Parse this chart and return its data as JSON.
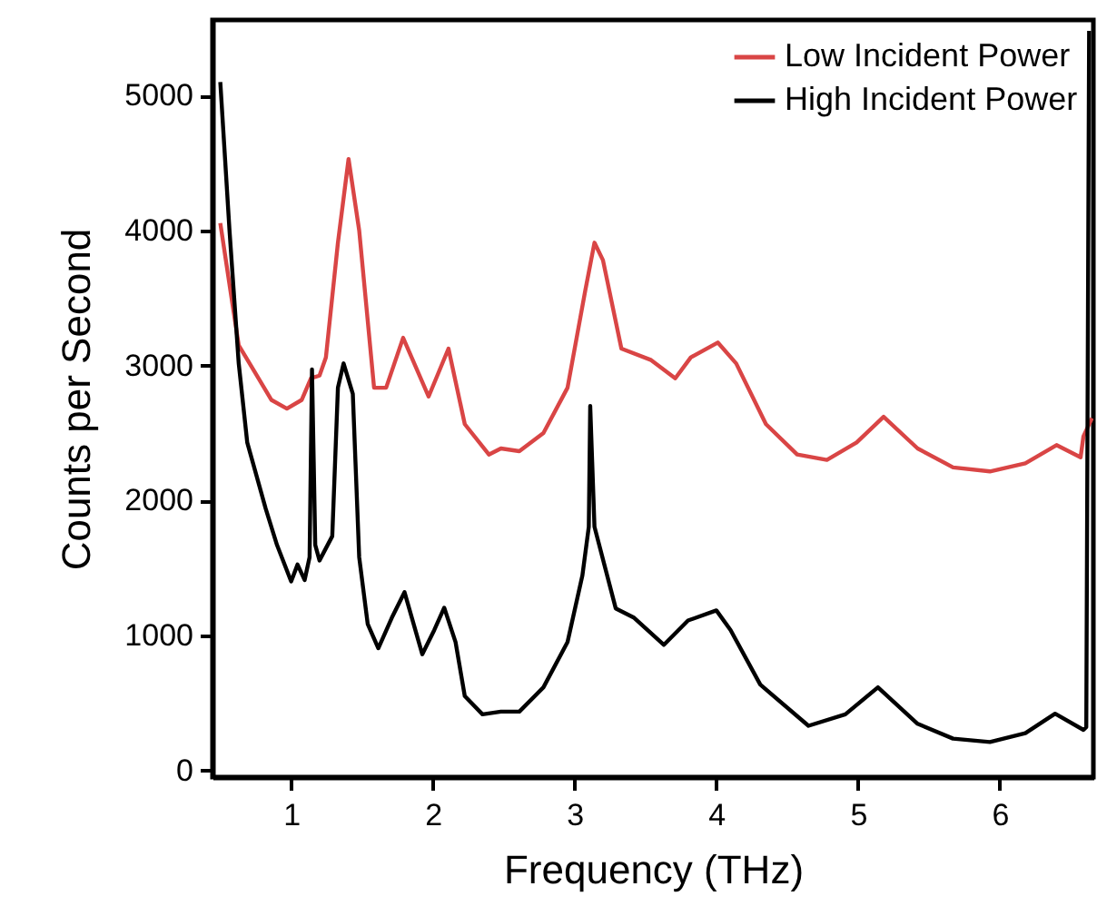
{
  "chart_data": {
    "type": "line",
    "xlabel": "Frequency (THz)",
    "ylabel": "Counts per Second",
    "xlim": [
      0.445,
      6.66
    ],
    "ylim": [
      -50,
      5560
    ],
    "xticks": [
      1,
      2,
      3,
      4,
      5,
      6
    ],
    "yticks": [
      0,
      1000,
      2000,
      3000,
      4000,
      5000
    ],
    "grid": false,
    "legend": "top right",
    "marker": "none",
    "line_style": "solid",
    "series": [
      {
        "name": "Low Incident Power",
        "color": "#d94545",
        "x": [
          0.5,
          0.565,
          0.63,
          0.73,
          0.86,
          0.97,
          1.075,
          1.14,
          1.2,
          1.245,
          1.33,
          1.405,
          1.48,
          1.585,
          1.67,
          1.79,
          1.97,
          2.11,
          2.225,
          2.395,
          2.48,
          2.61,
          2.78,
          2.95,
          3.075,
          3.14,
          3.2,
          3.33,
          3.54,
          3.71,
          3.82,
          4.01,
          4.14,
          4.35,
          4.57,
          4.78,
          4.99,
          5.18,
          5.42,
          5.67,
          5.93,
          6.18,
          6.4,
          6.57,
          6.59,
          6.65
        ],
        "values": [
          4055,
          3600,
          3150,
          2975,
          2745,
          2680,
          2745,
          2905,
          2925,
          3060,
          3910,
          4530,
          4000,
          2835,
          2835,
          3205,
          2770,
          3125,
          2565,
          2340,
          2385,
          2365,
          2500,
          2835,
          3555,
          3910,
          3780,
          3125,
          3040,
          2905,
          3060,
          3170,
          3015,
          2565,
          2340,
          2300,
          2430,
          2620,
          2385,
          2245,
          2215,
          2275,
          2410,
          2320,
          2475,
          2610
        ]
      },
      {
        "name": "High Incident Power",
        "color": "#000000",
        "x": [
          0.5,
          0.565,
          0.63,
          0.69,
          0.82,
          0.9,
          1.0,
          1.045,
          1.095,
          1.13,
          1.147,
          1.17,
          1.2,
          1.29,
          1.33,
          1.37,
          1.435,
          1.48,
          1.54,
          1.615,
          1.71,
          1.8,
          1.925,
          2.01,
          2.08,
          2.16,
          2.225,
          2.35,
          2.48,
          2.61,
          2.78,
          2.95,
          3.055,
          3.1,
          3.11,
          3.14,
          3.29,
          3.42,
          3.63,
          3.8,
          4.0,
          4.1,
          4.31,
          4.65,
          4.91,
          5.14,
          5.42,
          5.67,
          5.93,
          6.18,
          6.39,
          6.59,
          6.61,
          6.63
        ],
        "values": [
          5100,
          4000,
          3015,
          2430,
          1940,
          1670,
          1400,
          1525,
          1410,
          1580,
          2970,
          1670,
          1555,
          1735,
          2835,
          3015,
          2790,
          1580,
          1085,
          905,
          1130,
          1320,
          860,
          1040,
          1205,
          950,
          550,
          415,
          435,
          435,
          615,
          950,
          1445,
          1805,
          2700,
          1805,
          1200,
          1130,
          930,
          1110,
          1185,
          1040,
          635,
          330,
          415,
          615,
          345,
          235,
          210,
          275,
          420,
          300,
          320,
          5480
        ]
      }
    ]
  }
}
